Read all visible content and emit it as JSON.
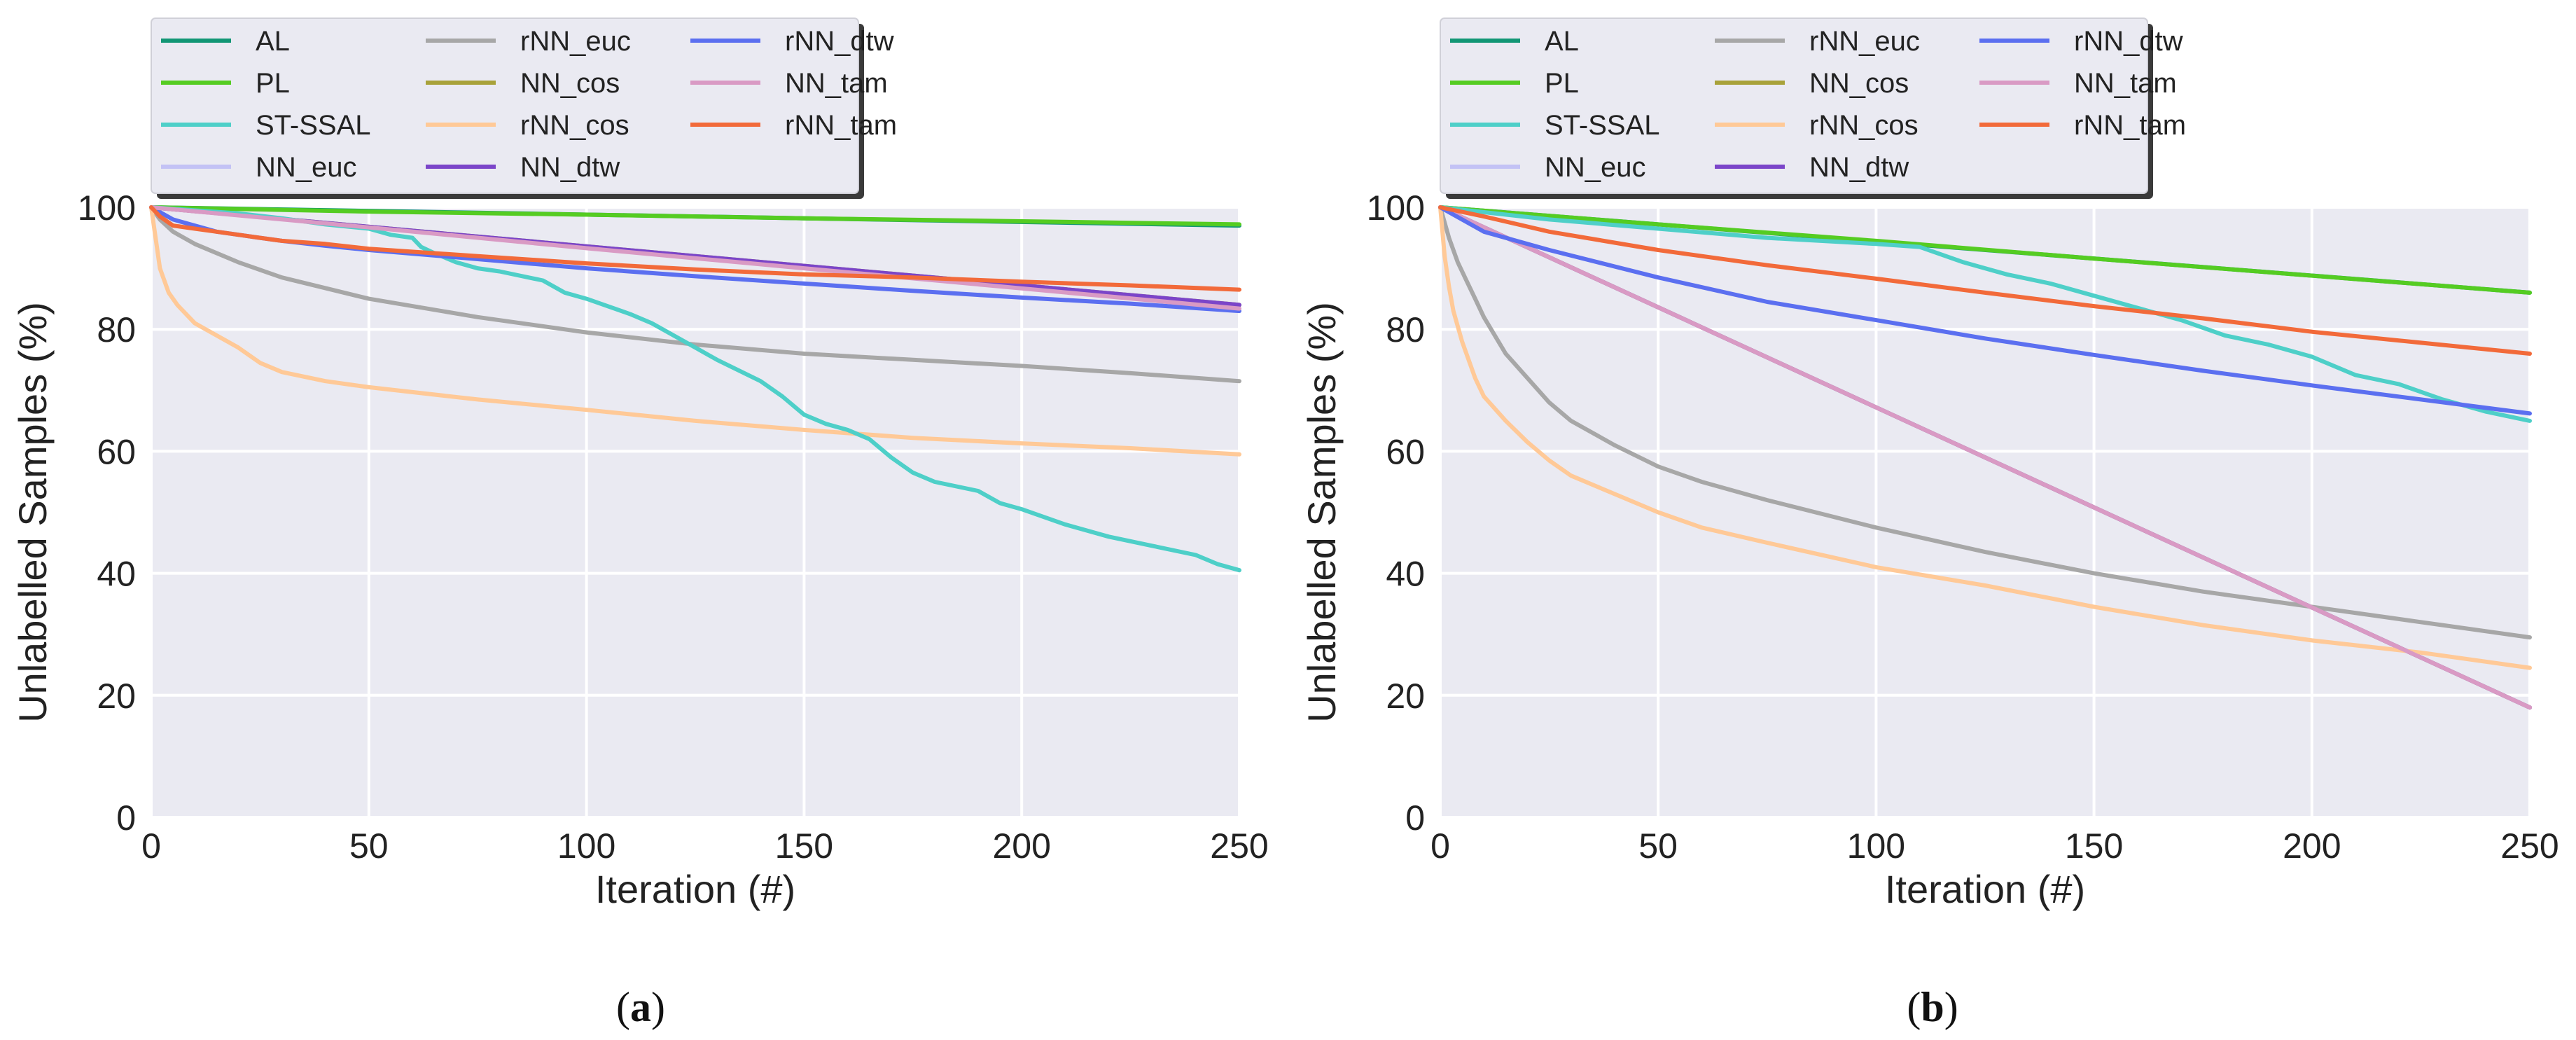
{
  "colors": {
    "plot_bg": "#eaeaf2",
    "grid": "#ffffff",
    "AL": "#129675",
    "PL": "#55cc22",
    "ST-SSAL": "#4ecfc8",
    "NN_euc": "#c3c2f5",
    "rNN_euc": "#a7a7a7",
    "NN_cos": "#a8a23a",
    "rNN_cos": "#ffc997",
    "NN_dtw": "#7b45c9",
    "rNN_dtw": "#5b6ff0",
    "NN_tam": "#d99ac4",
    "rNN_tam": "#f26a3a"
  },
  "chart_data": [
    {
      "type": "line",
      "caption": "a",
      "xlabel": "Iteration (#)",
      "ylabel": "Unlabelled Samples (%)",
      "xlim": [
        0,
        250
      ],
      "ylim": [
        0,
        100
      ],
      "xticks": [
        0,
        50,
        100,
        150,
        200,
        250
      ],
      "yticks": [
        0,
        20,
        40,
        60,
        80,
        100
      ],
      "grid": true,
      "legend": {
        "placement": "top-left, above plot",
        "entries": [
          "AL",
          "PL",
          "ST-SSAL",
          "NN_euc",
          "rNN_euc",
          "NN_cos",
          "rNN_cos",
          "NN_dtw",
          "rNN_dtw",
          "NN_tam",
          "rNN_tam"
        ]
      },
      "series": [
        {
          "name": "NN_euc",
          "x": [
            0,
            250
          ],
          "y": [
            100,
            84
          ]
        },
        {
          "name": "NN_cos",
          "x": [
            0,
            250
          ],
          "y": [
            100,
            84
          ]
        },
        {
          "name": "NN_dtw",
          "x": [
            0,
            250
          ],
          "y": [
            100,
            84
          ]
        },
        {
          "name": "AL",
          "x": [
            0,
            250
          ],
          "y": [
            100,
            97
          ]
        },
        {
          "name": "PL",
          "x": [
            0,
            50,
            100,
            150,
            200,
            250
          ],
          "y": [
            100,
            99.3,
            98.8,
            98.2,
            97.7,
            97.2
          ]
        },
        {
          "name": "rNN_euc",
          "x": [
            0,
            2,
            5,
            10,
            20,
            30,
            50,
            75,
            100,
            125,
            150,
            175,
            200,
            225,
            250
          ],
          "y": [
            100,
            98,
            96,
            94,
            91,
            88.5,
            85,
            82,
            79.5,
            77.5,
            76,
            75,
            74,
            72.8,
            71.5
          ]
        },
        {
          "name": "rNN_cos",
          "x": [
            0,
            1,
            2,
            4,
            6,
            10,
            15,
            20,
            25,
            30,
            40,
            50,
            75,
            100,
            125,
            150,
            175,
            200,
            225,
            250
          ],
          "y": [
            100,
            95,
            90,
            86,
            84,
            81,
            79,
            77,
            74.5,
            73,
            71.5,
            70.5,
            68.5,
            66.8,
            65,
            63.5,
            62.2,
            61.3,
            60.5,
            59.5
          ]
        },
        {
          "name": "ST-SSAL",
          "x": [
            0,
            10,
            20,
            30,
            40,
            50,
            55,
            60,
            62,
            65,
            70,
            75,
            80,
            90,
            95,
            100,
            110,
            115,
            120,
            125,
            130,
            140,
            145,
            150,
            155,
            160,
            165,
            170,
            175,
            180,
            190,
            195,
            200,
            210,
            220,
            230,
            240,
            245,
            250
          ],
          "y": [
            100,
            99.5,
            99,
            98.2,
            97.2,
            96.5,
            95.5,
            95,
            93.5,
            92.5,
            91,
            90,
            89.5,
            88,
            86,
            85,
            82.5,
            81,
            79,
            77,
            75,
            71.5,
            69,
            66,
            64.5,
            63.5,
            62,
            59,
            56.5,
            55,
            53.5,
            51.5,
            50.5,
            48,
            46,
            44.5,
            43,
            41.5,
            40.5
          ]
        },
        {
          "name": "rNN_dtw",
          "x": [
            0,
            5,
            10,
            15,
            20,
            25,
            30,
            40,
            50,
            75,
            100,
            125,
            150,
            175,
            200,
            225,
            250
          ],
          "y": [
            100,
            98,
            97,
            96,
            95.5,
            95,
            94.5,
            93.7,
            93,
            91.5,
            90,
            88.7,
            87.5,
            86.3,
            85.2,
            84.2,
            83
          ]
        },
        {
          "name": "NN_tam",
          "x": [
            0,
            50,
            100,
            150,
            200,
            250
          ],
          "y": [
            100,
            96.7,
            93.3,
            90,
            86.7,
            83.4
          ]
        },
        {
          "name": "rNN_tam",
          "x": [
            0,
            2,
            5,
            10,
            15,
            20,
            25,
            30,
            40,
            50,
            75,
            100,
            125,
            150,
            175,
            200,
            225,
            250
          ],
          "y": [
            100,
            98.5,
            97,
            96.5,
            96,
            95.5,
            95,
            94.5,
            94,
            93.2,
            92,
            90.8,
            89.8,
            89,
            88.5,
            87.8,
            87.2,
            86.5
          ]
        }
      ]
    },
    {
      "type": "line",
      "caption": "b",
      "xlabel": "Iteration (#)",
      "ylabel": "Unlabelled Samples (%)",
      "xlim": [
        0,
        250
      ],
      "ylim": [
        0,
        100
      ],
      "xticks": [
        0,
        50,
        100,
        150,
        200,
        250
      ],
      "yticks": [
        0,
        20,
        40,
        60,
        80,
        100
      ],
      "grid": true,
      "legend": {
        "placement": "top-left, above plot",
        "entries": [
          "AL",
          "PL",
          "ST-SSAL",
          "NN_euc",
          "rNN_euc",
          "NN_cos",
          "rNN_cos",
          "NN_dtw",
          "rNN_dtw",
          "NN_tam",
          "rNN_tam"
        ]
      },
      "series": [
        {
          "name": "NN_euc",
          "x": [
            0,
            250
          ],
          "y": [
            100,
            18
          ]
        },
        {
          "name": "NN_cos",
          "x": [
            0,
            250
          ],
          "y": [
            100,
            18
          ]
        },
        {
          "name": "NN_dtw",
          "x": [
            0,
            250
          ],
          "y": [
            100,
            18
          ]
        },
        {
          "name": "AL",
          "x": [
            0,
            250
          ],
          "y": [
            100,
            86
          ]
        },
        {
          "name": "PL",
          "x": [
            0,
            50,
            100,
            150,
            200,
            250
          ],
          "y": [
            100,
            97.2,
            94.5,
            91.6,
            88.8,
            86
          ]
        },
        {
          "name": "ST-SSAL",
          "x": [
            0,
            25,
            50,
            75,
            100,
            110,
            120,
            130,
            140,
            150,
            160,
            170,
            180,
            190,
            200,
            210,
            220,
            230,
            240,
            250
          ],
          "y": [
            100,
            98,
            96.5,
            95,
            94,
            93.5,
            91,
            89,
            87.5,
            85.5,
            83.5,
            81.5,
            79,
            77.5,
            75.5,
            72.5,
            71,
            68.5,
            66.5,
            65
          ]
        },
        {
          "name": "rNN_euc",
          "x": [
            0,
            2,
            4,
            6,
            8,
            10,
            15,
            20,
            25,
            30,
            40,
            50,
            60,
            75,
            100,
            125,
            150,
            175,
            200,
            225,
            250
          ],
          "y": [
            100,
            95,
            91,
            88,
            85,
            82,
            76,
            72,
            68,
            65,
            61,
            57.5,
            55,
            52,
            47.5,
            43.5,
            40,
            37,
            34.5,
            32,
            29.5
          ]
        },
        {
          "name": "rNN_cos",
          "x": [
            0,
            1,
            2,
            3,
            5,
            8,
            10,
            15,
            20,
            25,
            30,
            40,
            50,
            60,
            75,
            100,
            125,
            150,
            175,
            200,
            225,
            250
          ],
          "y": [
            100,
            92,
            87,
            83,
            78,
            72,
            69,
            65,
            61.5,
            58.5,
            56,
            53,
            50,
            47.5,
            45,
            41,
            38,
            34.5,
            31.5,
            29,
            27,
            24.5
          ]
        },
        {
          "name": "NN_tam",
          "x": [
            0,
            250
          ],
          "y": [
            100,
            18
          ]
        },
        {
          "name": "rNN_dtw",
          "x": [
            0,
            10,
            25,
            50,
            75,
            100,
            125,
            150,
            175,
            200,
            225,
            250
          ],
          "y": [
            100,
            96,
            93,
            88.5,
            84.5,
            81.5,
            78.5,
            75.8,
            73.2,
            70.8,
            68.5,
            66.2
          ]
        },
        {
          "name": "rNN_tam",
          "x": [
            0,
            10,
            25,
            50,
            75,
            100,
            125,
            150,
            175,
            200,
            225,
            250
          ],
          "y": [
            100,
            98.5,
            96,
            93,
            90.5,
            88.3,
            86,
            83.8,
            81.8,
            79.6,
            77.8,
            76
          ]
        }
      ]
    }
  ]
}
